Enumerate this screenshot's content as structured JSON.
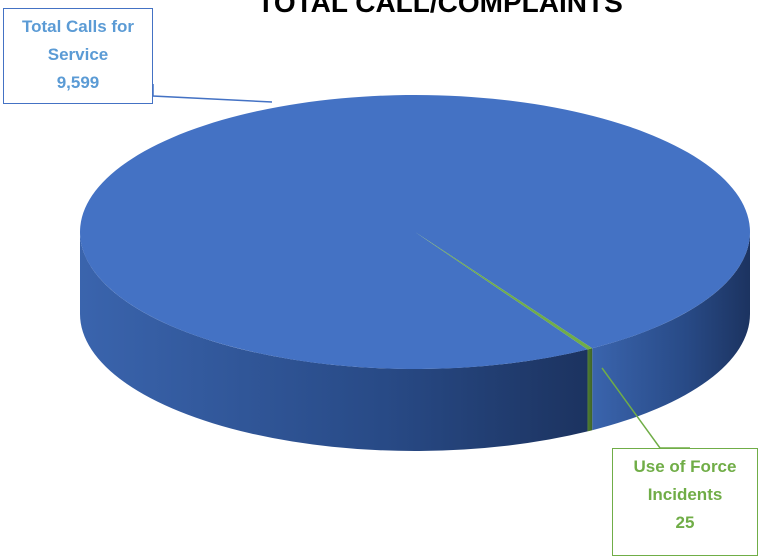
{
  "chart_data": {
    "type": "pie3d",
    "title": "TOTAL CALL/COMPLAINTS",
    "categories": [
      "Total Calls for Service",
      "Use of Force Incidents"
    ],
    "values": [
      9599,
      25
    ],
    "value_labels": [
      "9,599",
      "25"
    ],
    "colors": [
      "#4472c4",
      "#70ad47"
    ]
  }
}
